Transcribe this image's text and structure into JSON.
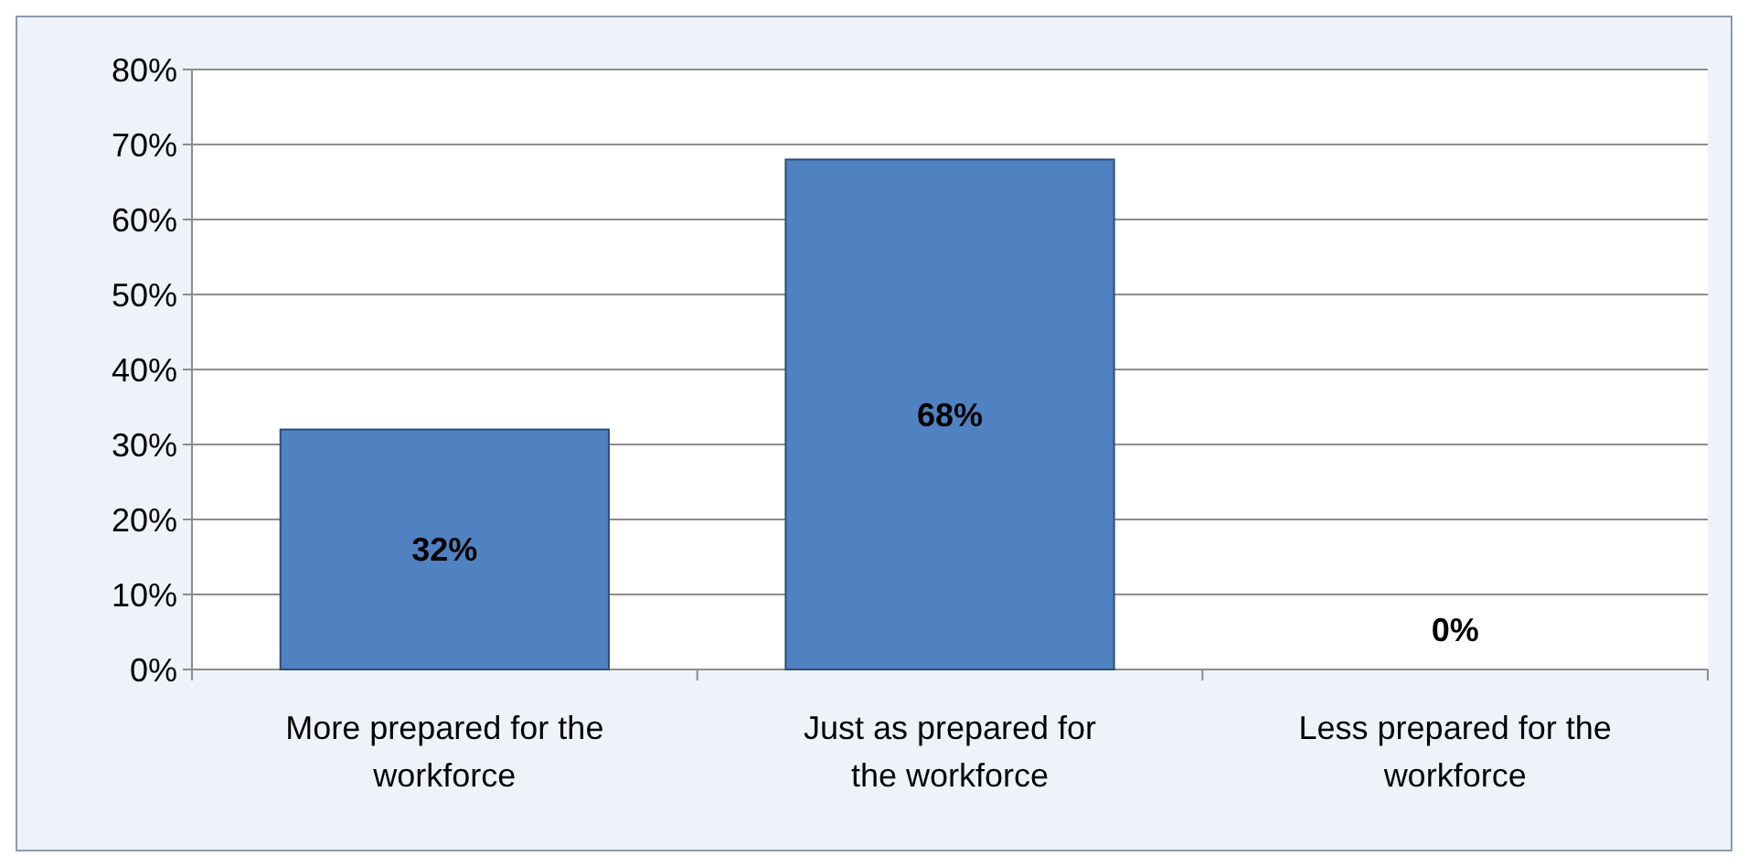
{
  "chart_data": {
    "type": "bar",
    "categories": [
      "More prepared for the workforce",
      "Just as prepared for the workforce",
      "Less prepared for the workforce"
    ],
    "values": [
      32,
      68,
      0
    ],
    "color": "#5082c2",
    "value_labels": [
      "32%",
      "68%",
      "0%"
    ],
    "ylim": [
      0,
      80
    ],
    "yticks": [
      {
        "value": 0,
        "label": "0%"
      },
      {
        "value": 10,
        "label": "10%"
      },
      {
        "value": 20,
        "label": "20%"
      },
      {
        "value": 30,
        "label": "30%"
      },
      {
        "value": 40,
        "label": "40%"
      },
      {
        "value": 50,
        "label": "50%"
      },
      {
        "value": 60,
        "label": "60%"
      },
      {
        "value": 70,
        "label": "70%"
      },
      {
        "value": 80,
        "label": "80%"
      }
    ],
    "grid": "y"
  }
}
